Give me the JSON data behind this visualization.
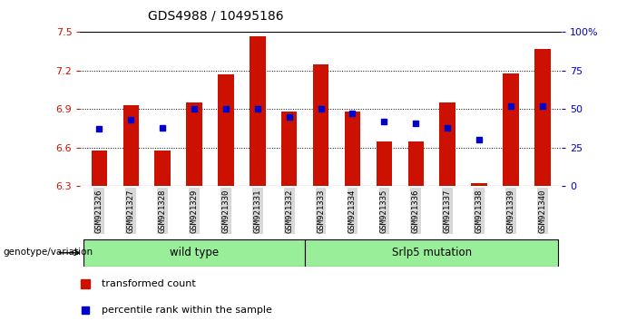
{
  "title": "GDS4988 / 10495186",
  "samples": [
    "GSM921326",
    "GSM921327",
    "GSM921328",
    "GSM921329",
    "GSM921330",
    "GSM921331",
    "GSM921332",
    "GSM921333",
    "GSM921334",
    "GSM921335",
    "GSM921336",
    "GSM921337",
    "GSM921338",
    "GSM921339",
    "GSM921340"
  ],
  "transformed_count": [
    6.58,
    6.93,
    6.58,
    6.95,
    7.17,
    7.47,
    6.88,
    7.25,
    6.88,
    6.65,
    6.65,
    6.95,
    6.32,
    7.18,
    7.37
  ],
  "percentile_rank": [
    37,
    43,
    38,
    50,
    50,
    50,
    45,
    50,
    47,
    42,
    41,
    38,
    30,
    52,
    52
  ],
  "y_min": 6.3,
  "y_max": 7.5,
  "y_ticks": [
    6.3,
    6.6,
    6.9,
    7.2,
    7.5
  ],
  "right_y_ticks": [
    0,
    25,
    50,
    75,
    100
  ],
  "right_y_labels": [
    "0",
    "25",
    "50",
    "75",
    "100%"
  ],
  "bar_color": "#cc1100",
  "dot_color": "#0000cc",
  "group1_label": "wild type",
  "group2_label": "Srlp5 mutation",
  "group1_count": 7,
  "group2_count": 8,
  "legend_bar_label": "transformed count",
  "legend_dot_label": "percentile rank within the sample",
  "xlabel_genotype": "genotype/variation",
  "bg_color_group": "#99ee99",
  "title_fontsize": 10,
  "axis_color_left": "#cc1100",
  "axis_color_right": "#0000cc"
}
